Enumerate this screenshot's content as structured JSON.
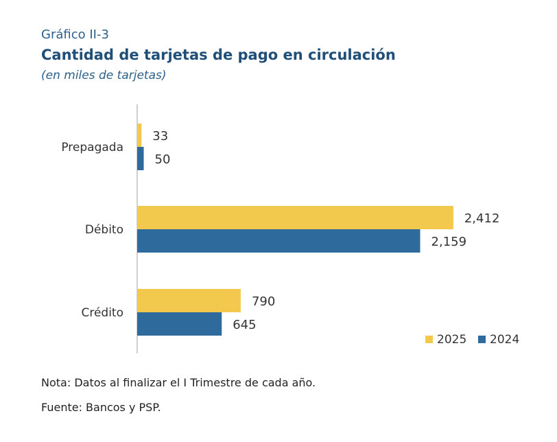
{
  "header": {
    "label": "Gráfico II-3",
    "title": "Cantidad de tarjetas de pago en circulación",
    "subtitle": "(en miles de tarjetas)"
  },
  "footer": {
    "note": "Nota: Datos al finalizar el I Trimestre de cada año.",
    "source": "Fuente: Bancos y PSP."
  },
  "colors": {
    "series_2025": "#f2c94c",
    "series_2024": "#2e6a9c",
    "axis": "#bfbfbf",
    "text": "#333333"
  },
  "chart_data": {
    "type": "bar",
    "orientation": "horizontal",
    "categories": [
      "Prepagada",
      "Débito",
      "Crédito"
    ],
    "series": [
      {
        "name": "2025",
        "values": [
          33,
          2412,
          790
        ],
        "labels": [
          "33",
          "2,412",
          "790"
        ]
      },
      {
        "name": "2024",
        "values": [
          50,
          2159,
          645
        ],
        "labels": [
          "50",
          "2,159",
          "645"
        ]
      }
    ],
    "xlim": [
      0,
      2800
    ],
    "grid": false,
    "legend_position": "bottom-right"
  }
}
